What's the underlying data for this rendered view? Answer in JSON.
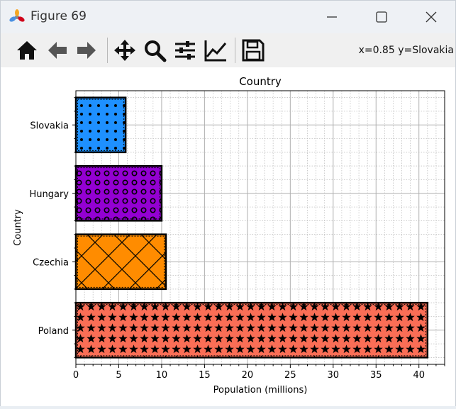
{
  "window": {
    "title": "Figure 69",
    "minimize_icon": "minimize-icon",
    "maximize_icon": "maximize-icon",
    "close_icon": "close-icon"
  },
  "toolbar": {
    "buttons": [
      {
        "name": "home-button",
        "icon": "home-icon"
      },
      {
        "name": "back-button",
        "icon": "arrow-left-icon"
      },
      {
        "name": "forward-button",
        "icon": "arrow-right-icon"
      },
      {
        "name": "pan-button",
        "icon": "move-icon"
      },
      {
        "name": "zoom-button",
        "icon": "zoom-icon"
      },
      {
        "name": "configure-subplots-button",
        "icon": "sliders-icon"
      },
      {
        "name": "edit-axis-button",
        "icon": "line-chart-icon"
      },
      {
        "name": "save-button",
        "icon": "floppy-disk-icon"
      }
    ],
    "coordinates": "x=0.85 y=Slovakia"
  },
  "chart_data": {
    "type": "bar",
    "orientation": "horizontal",
    "title": "Country",
    "xlabel": "Population (millions)",
    "ylabel": "Country",
    "categories": [
      "Poland",
      "Czechia",
      "Hungary",
      "Slovakia"
    ],
    "values": [
      41,
      10.5,
      10,
      5.8
    ],
    "colors": [
      "#fa6e56",
      "#ff8c00",
      "#9400d3",
      "#1e90ff"
    ],
    "hatches": [
      "stars",
      "diagonal-cross",
      "circles",
      "dots"
    ],
    "xlim": [
      0,
      43
    ],
    "xticks": [
      0,
      5,
      10,
      15,
      20,
      25,
      30,
      35,
      40
    ],
    "grid": true,
    "minor_grid": true
  }
}
